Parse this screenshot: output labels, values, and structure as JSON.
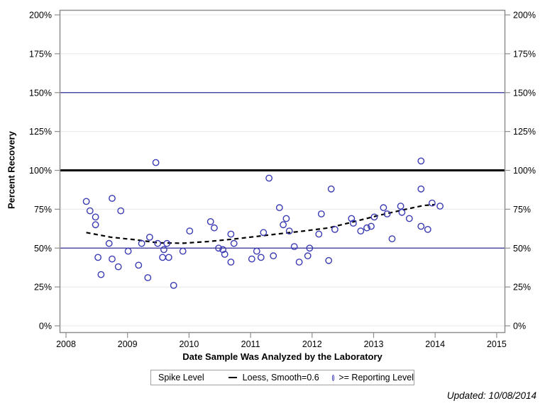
{
  "page": {
    "background": "#ffffff"
  },
  "footer": {
    "updated": "Updated: 10/08/2014"
  },
  "legend": {
    "title": "Spike Level",
    "entries": [
      {
        "symbol": "dashed-line",
        "label": "Loess, Smooth=0.6"
      },
      {
        "symbol": "open-circle",
        "label": ">= Reporting Level"
      }
    ]
  },
  "colors": {
    "marker": "#3a3ab3",
    "loess_line": "#000000",
    "spike_line": "#000000",
    "reference_line": "#2d2d96",
    "gridline": "#e8e8e8",
    "frame": "#8f8f8f"
  },
  "chart_data": {
    "type": "scatter",
    "title": "",
    "xlabel": "Date Sample Was Analyzed by the Laboratory",
    "ylabel": "Percent Recovery",
    "xlim": [
      2008,
      2015
    ],
    "ylim": [
      0,
      200
    ],
    "x_ticks": [
      2008,
      2009,
      2010,
      2011,
      2012,
      2013,
      2014,
      2015
    ],
    "y_ticks": [
      0,
      25,
      50,
      75,
      100,
      125,
      150,
      175,
      200
    ],
    "y_tick_suffix": "%",
    "grid": true,
    "legend_position": "bottom",
    "mirrored_y_axis": true,
    "reference_lines": [
      {
        "y": 50,
        "style": "thin"
      },
      {
        "y": 100,
        "style": "thick",
        "name": "Spike Level"
      },
      {
        "y": 150,
        "style": "thin"
      }
    ],
    "series": [
      {
        "name": "Loess, Smooth=0.6",
        "type": "line",
        "dashed": true,
        "points": [
          [
            2008.33,
            60.0
          ],
          [
            2008.73,
            57.0
          ],
          [
            2009.12,
            55.4
          ],
          [
            2009.5,
            53.4
          ],
          [
            2009.9,
            53.1
          ],
          [
            2010.31,
            54.2
          ],
          [
            2010.7,
            55.7
          ],
          [
            2011.08,
            57.4
          ],
          [
            2011.46,
            59.2
          ],
          [
            2011.87,
            61.0
          ],
          [
            2012.27,
            63.0
          ],
          [
            2012.66,
            66.8
          ],
          [
            2013.04,
            70.6
          ],
          [
            2013.42,
            74.1
          ],
          [
            2013.81,
            77.4
          ],
          [
            2014.0,
            78.0
          ]
        ]
      },
      {
        "name": ">= Reporting Level",
        "type": "scatter",
        "marker": "open-circle",
        "points": [
          [
            2008.33,
            80
          ],
          [
            2008.39,
            74
          ],
          [
            2008.48,
            70
          ],
          [
            2008.48,
            65
          ],
          [
            2008.52,
            44
          ],
          [
            2008.57,
            33
          ],
          [
            2008.7,
            53
          ],
          [
            2008.75,
            82
          ],
          [
            2008.75,
            43
          ],
          [
            2008.85,
            38
          ],
          [
            2008.89,
            74
          ],
          [
            2009.01,
            48
          ],
          [
            2009.18,
            39
          ],
          [
            2009.23,
            53
          ],
          [
            2009.33,
            31
          ],
          [
            2009.36,
            57
          ],
          [
            2009.46,
            105
          ],
          [
            2009.49,
            53
          ],
          [
            2009.57,
            44
          ],
          [
            2009.59,
            49
          ],
          [
            2009.64,
            53
          ],
          [
            2009.67,
            44
          ],
          [
            2009.75,
            26
          ],
          [
            2009.9,
            48
          ],
          [
            2010.01,
            61
          ],
          [
            2010.35,
            67
          ],
          [
            2010.41,
            63
          ],
          [
            2010.48,
            50
          ],
          [
            2010.55,
            49
          ],
          [
            2010.58,
            46
          ],
          [
            2010.68,
            59
          ],
          [
            2010.68,
            41
          ],
          [
            2010.73,
            53
          ],
          [
            2011.02,
            43
          ],
          [
            2011.1,
            48
          ],
          [
            2011.17,
            44
          ],
          [
            2011.21,
            60
          ],
          [
            2011.3,
            95
          ],
          [
            2011.37,
            45
          ],
          [
            2011.47,
            76
          ],
          [
            2011.53,
            65
          ],
          [
            2011.58,
            69
          ],
          [
            2011.63,
            61
          ],
          [
            2011.71,
            51
          ],
          [
            2011.79,
            41
          ],
          [
            2011.93,
            45
          ],
          [
            2011.96,
            50
          ],
          [
            2012.11,
            59
          ],
          [
            2012.15,
            72
          ],
          [
            2012.27,
            42
          ],
          [
            2012.31,
            88
          ],
          [
            2012.37,
            62
          ],
          [
            2012.64,
            69
          ],
          [
            2012.67,
            66
          ],
          [
            2012.79,
            61
          ],
          [
            2012.89,
            63
          ],
          [
            2012.96,
            64
          ],
          [
            2013.01,
            70
          ],
          [
            2013.16,
            76
          ],
          [
            2013.22,
            72
          ],
          [
            2013.3,
            56
          ],
          [
            2013.44,
            77
          ],
          [
            2013.46,
            73
          ],
          [
            2013.58,
            69
          ],
          [
            2013.77,
            106
          ],
          [
            2013.77,
            88
          ],
          [
            2013.77,
            64
          ],
          [
            2013.88,
            62
          ],
          [
            2013.95,
            79
          ],
          [
            2014.08,
            77
          ]
        ]
      }
    ]
  }
}
